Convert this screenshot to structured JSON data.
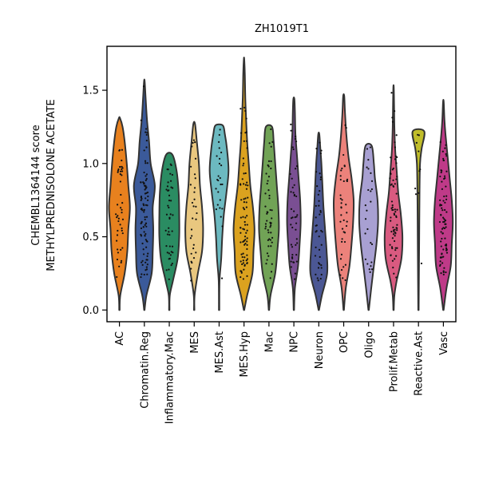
{
  "chart_data": {
    "type": "violin",
    "title": "ZH1019T1",
    "ylabel_line1": "CHEMBL1364144 score",
    "ylabel_line2": "METHYLPREDNISOLONE ACETATE",
    "ylim": [
      -0.08,
      1.8
    ],
    "yticks": [
      0.0,
      0.5,
      1.0,
      1.5
    ],
    "ytick_labels": [
      "0.0",
      "0.5",
      "1.0",
      "1.5"
    ],
    "grid": false,
    "categories": [
      "AC",
      "Chromatin.Reg",
      "Inflammatory.Mac",
      "MES",
      "MES.Ast",
      "MES.Hyp",
      "Mac",
      "NPC",
      "Neuron",
      "OPC",
      "Oligo",
      "Prolif.Metab",
      "Reactive.Ast",
      "Vasc"
    ],
    "colors": [
      "#e8811e",
      "#3b5a9a",
      "#2a8c62",
      "#e9c77f",
      "#6cb9c0",
      "#dba21f",
      "#71a356",
      "#7a4f93",
      "#4b5794",
      "#ec827b",
      "#a8a0d2",
      "#d95a80",
      "#c0bd2a",
      "#bf3a88"
    ],
    "maxima": [
      1.31,
      1.56,
      1.06,
      1.27,
      1.26,
      1.71,
      1.25,
      1.44,
      1.2,
      1.46,
      1.12,
      1.52,
      1.22,
      1.42
    ],
    "profiles": [
      [
        [
          0.0,
          0.02
        ],
        [
          0.1,
          0.08
        ],
        [
          0.25,
          0.5
        ],
        [
          0.4,
          0.75
        ],
        [
          0.55,
          0.85
        ],
        [
          0.7,
          1.0
        ],
        [
          0.85,
          0.85
        ],
        [
          1.0,
          0.7
        ],
        [
          1.15,
          0.5
        ],
        [
          1.25,
          0.3
        ],
        [
          1.31,
          0.05
        ]
      ],
      [
        [
          0.0,
          0.02
        ],
        [
          0.1,
          0.2
        ],
        [
          0.25,
          0.7
        ],
        [
          0.4,
          0.8
        ],
        [
          0.55,
          0.85
        ],
        [
          0.7,
          0.8
        ],
        [
          0.85,
          1.0
        ],
        [
          1.0,
          0.6
        ],
        [
          1.15,
          0.45
        ],
        [
          1.3,
          0.25
        ],
        [
          1.45,
          0.12
        ],
        [
          1.56,
          0.03
        ]
      ],
      [
        [
          0.0,
          0.02
        ],
        [
          0.1,
          0.05
        ],
        [
          0.2,
          0.35
        ],
        [
          0.35,
          0.8
        ],
        [
          0.5,
          0.95
        ],
        [
          0.65,
          0.95
        ],
        [
          0.8,
          0.9
        ],
        [
          0.95,
          0.7
        ],
        [
          1.06,
          0.3
        ]
      ],
      [
        [
          0.0,
          0.02
        ],
        [
          0.1,
          0.04
        ],
        [
          0.25,
          0.35
        ],
        [
          0.4,
          0.75
        ],
        [
          0.55,
          0.85
        ],
        [
          0.7,
          0.75
        ],
        [
          0.85,
          0.55
        ],
        [
          1.0,
          0.45
        ],
        [
          1.15,
          0.25
        ],
        [
          1.27,
          0.08
        ]
      ],
      [
        [
          0.0,
          0.02
        ],
        [
          0.2,
          0.04
        ],
        [
          0.35,
          0.2
        ],
        [
          0.5,
          0.3
        ],
        [
          0.65,
          0.45
        ],
        [
          0.8,
          0.7
        ],
        [
          0.95,
          0.9
        ],
        [
          1.1,
          0.75
        ],
        [
          1.2,
          0.55
        ],
        [
          1.26,
          0.35
        ]
      ],
      [
        [
          0.0,
          0.02
        ],
        [
          0.1,
          0.3
        ],
        [
          0.25,
          0.8
        ],
        [
          0.4,
          0.9
        ],
        [
          0.55,
          1.0
        ],
        [
          0.7,
          0.85
        ],
        [
          0.85,
          0.6
        ],
        [
          1.0,
          0.45
        ],
        [
          1.15,
          0.3
        ],
        [
          1.3,
          0.2
        ],
        [
          1.45,
          0.12
        ],
        [
          1.6,
          0.08
        ],
        [
          1.71,
          0.02
        ]
      ],
      [
        [
          0.0,
          0.02
        ],
        [
          0.1,
          0.15
        ],
        [
          0.25,
          0.6
        ],
        [
          0.4,
          0.8
        ],
        [
          0.55,
          0.95
        ],
        [
          0.7,
          0.9
        ],
        [
          0.85,
          0.75
        ],
        [
          1.0,
          0.6
        ],
        [
          1.15,
          0.45
        ],
        [
          1.25,
          0.3
        ]
      ],
      [
        [
          0.0,
          0.02
        ],
        [
          0.15,
          0.1
        ],
        [
          0.3,
          0.4
        ],
        [
          0.45,
          0.55
        ],
        [
          0.6,
          0.65
        ],
        [
          0.75,
          0.6
        ],
        [
          0.9,
          0.45
        ],
        [
          1.05,
          0.3
        ],
        [
          1.2,
          0.15
        ],
        [
          1.35,
          0.1
        ],
        [
          1.44,
          0.05
        ]
      ],
      [
        [
          0.0,
          0.02
        ],
        [
          0.1,
          0.3
        ],
        [
          0.25,
          0.8
        ],
        [
          0.4,
          0.75
        ],
        [
          0.55,
          0.6
        ],
        [
          0.7,
          0.45
        ],
        [
          0.85,
          0.35
        ],
        [
          1.0,
          0.25
        ],
        [
          1.1,
          0.15
        ],
        [
          1.2,
          0.05
        ]
      ],
      [
        [
          0.0,
          0.02
        ],
        [
          0.15,
          0.2
        ],
        [
          0.3,
          0.55
        ],
        [
          0.45,
          0.75
        ],
        [
          0.6,
          0.9
        ],
        [
          0.75,
          0.95
        ],
        [
          0.9,
          0.75
        ],
        [
          1.05,
          0.45
        ],
        [
          1.2,
          0.25
        ],
        [
          1.35,
          0.12
        ],
        [
          1.46,
          0.05
        ]
      ],
      [
        [
          0.0,
          0.02
        ],
        [
          0.15,
          0.25
        ],
        [
          0.3,
          0.5
        ],
        [
          0.45,
          0.75
        ],
        [
          0.6,
          0.9
        ],
        [
          0.75,
          0.85
        ],
        [
          0.9,
          0.6
        ],
        [
          1.0,
          0.5
        ],
        [
          1.12,
          0.3
        ]
      ],
      [
        [
          0.0,
          0.02
        ],
        [
          0.1,
          0.08
        ],
        [
          0.2,
          0.3
        ],
        [
          0.35,
          0.75
        ],
        [
          0.5,
          0.85
        ],
        [
          0.65,
          0.7
        ],
        [
          0.8,
          0.45
        ],
        [
          0.95,
          0.3
        ],
        [
          1.1,
          0.15
        ],
        [
          1.25,
          0.08
        ],
        [
          1.4,
          0.05
        ],
        [
          1.52,
          0.02
        ]
      ],
      [
        [
          0.0,
          0.02
        ],
        [
          0.2,
          0.04
        ],
        [
          0.5,
          0.07
        ],
        [
          0.8,
          0.1
        ],
        [
          1.0,
          0.15
        ],
        [
          1.1,
          0.3
        ],
        [
          1.22,
          0.55
        ]
      ],
      [
        [
          0.0,
          0.02
        ],
        [
          0.15,
          0.3
        ],
        [
          0.3,
          0.7
        ],
        [
          0.45,
          0.8
        ],
        [
          0.6,
          0.9
        ],
        [
          0.75,
          0.8
        ],
        [
          0.9,
          0.6
        ],
        [
          1.05,
          0.4
        ],
        [
          1.2,
          0.2
        ],
        [
          1.3,
          0.1
        ],
        [
          1.42,
          0.03
        ]
      ]
    ],
    "point_counts": [
      45,
      90,
      45,
      30,
      25,
      80,
      50,
      45,
      40,
      40,
      25,
      70,
      10,
      80
    ]
  }
}
